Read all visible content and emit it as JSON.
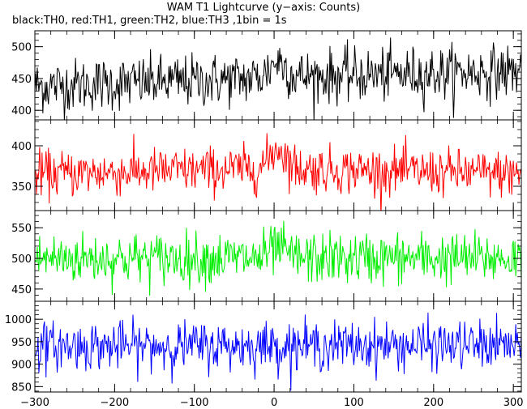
{
  "title": "WAM T1 Lightcurve (y−axis: Counts)",
  "subtitle": "black:TH0, red:TH1, green:TH2, blue:TH3 ,1bin = 1s",
  "chart_data": {
    "type": "line",
    "title": "WAM T1 Lightcurve (y−axis: Counts)",
    "subtitle": "black:TH0, red:TH1, green:TH2, blue:TH3 ,1bin = 1s",
    "x_range": [
      -300,
      310
    ],
    "x_ticks": [
      "−300",
      "−200",
      "−100",
      "0",
      "100",
      "200",
      "300"
    ],
    "x_tick_values": [
      -300,
      -200,
      -100,
      0,
      100,
      200,
      300
    ],
    "panels": [
      {
        "series": "TH0",
        "color": "#000000",
        "ylim": [
          385,
          525
        ],
        "y_ticks": [
          "400",
          "450",
          "500"
        ],
        "y_tick_values": [
          400,
          450,
          500
        ],
        "baseline": [
          [
            -300,
            438
          ],
          [
            -200,
            442
          ],
          [
            -100,
            446
          ],
          [
            0,
            452
          ],
          [
            100,
            455
          ],
          [
            200,
            458
          ],
          [
            310,
            462
          ]
        ],
        "noise": 22,
        "peak": [
          [
            5,
            25
          ]
        ]
      },
      {
        "series": "TH1",
        "color": "#ff0000",
        "ylim": [
          320,
          432
        ],
        "y_ticks": [
          "350",
          "400"
        ],
        "y_tick_values": [
          350,
          400
        ],
        "baseline": [
          [
            -300,
            365
          ],
          [
            0,
            372
          ],
          [
            310,
            365
          ]
        ],
        "noise": 15,
        "peak": [
          [
            5,
            25
          ]
        ]
      },
      {
        "series": "TH2",
        "color": "#00ee00",
        "ylim": [
          430,
          578
        ],
        "y_ticks": [
          "450",
          "500",
          "550"
        ],
        "y_tick_values": [
          450,
          500,
          550
        ],
        "baseline": [
          [
            -300,
            500
          ],
          [
            310,
            500
          ]
        ],
        "noise": 22,
        "peak": [
          [
            5,
            15
          ]
        ]
      },
      {
        "series": "TH3",
        "color": "#0000ff",
        "ylim": [
          838,
          1040
        ],
        "y_ticks": [
          "850",
          "900",
          "950",
          "1000"
        ],
        "y_tick_values": [
          850,
          900,
          950,
          1000
        ],
        "baseline": [
          [
            -300,
            940
          ],
          [
            310,
            942
          ]
        ],
        "noise": 28,
        "peak": []
      }
    ]
  }
}
